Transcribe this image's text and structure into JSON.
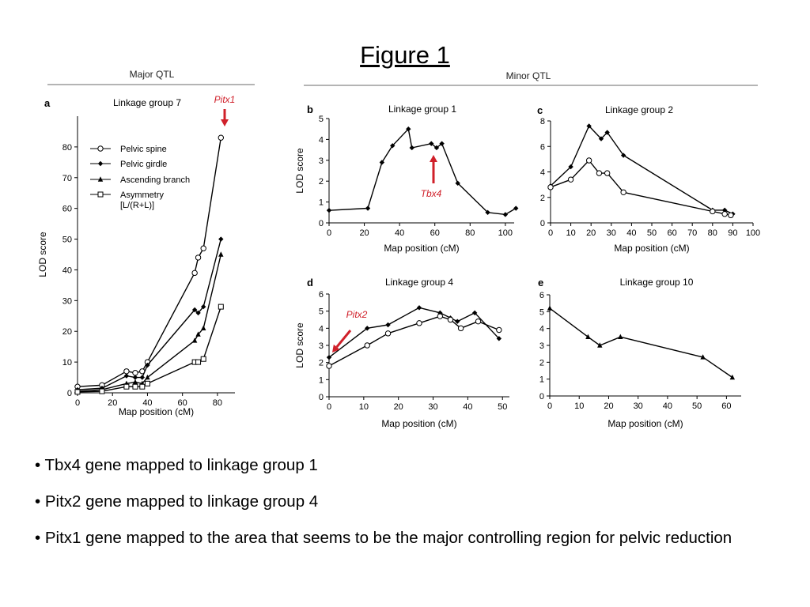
{
  "slide": {
    "title": "Figure 1",
    "bullets": [
      "• Tbx4 gene mapped to linkage group 1",
      "• Pitx2 gene mapped to linkage group 4",
      "• Pitx1 gene mapped to the area that seems to be the major controlling region for pelvic reduction"
    ]
  },
  "figure": {
    "major_heading": "Major QTL",
    "minor_heading": "Minor QTL",
    "accent_color": "#d0202a"
  },
  "chart_data": [
    {
      "id": "a",
      "panel": "a",
      "type": "line",
      "title": "Linkage group 7",
      "xlabel": "Map position (cM)",
      "ylabel": "LOD score",
      "xlim": [
        0,
        90
      ],
      "ylim": [
        0,
        90
      ],
      "xticks": [
        0,
        20,
        40,
        60,
        80
      ],
      "yticks": [
        0,
        10,
        20,
        30,
        40,
        50,
        60,
        70,
        80
      ],
      "legend": "top-left",
      "series": [
        {
          "name": "Pelvic spine",
          "marker": "open-circle",
          "x": [
            0,
            14,
            28,
            33,
            37,
            40,
            67,
            69,
            72,
            82
          ],
          "y": [
            2,
            2.5,
            7,
            6.5,
            7,
            10,
            39,
            44,
            47,
            83
          ]
        },
        {
          "name": "Pelvic girdle",
          "marker": "diamond",
          "x": [
            0,
            14,
            28,
            33,
            37,
            40,
            67,
            69,
            72,
            82
          ],
          "y": [
            1,
            1.5,
            5.5,
            5,
            5,
            9,
            27,
            26,
            28,
            50
          ]
        },
        {
          "name": "Ascending branch",
          "marker": "triangle",
          "x": [
            0,
            14,
            28,
            33,
            37,
            40,
            67,
            69,
            72,
            82
          ],
          "y": [
            0.5,
            1,
            3,
            3.5,
            3,
            5,
            17,
            19,
            21,
            45
          ]
        },
        {
          "name": "Asymmetry [L/(R+L)]",
          "marker": "open-square",
          "x": [
            0,
            14,
            28,
            33,
            37,
            40,
            67,
            69,
            72,
            82
          ],
          "y": [
            0.3,
            0.5,
            2,
            2,
            2,
            3,
            10,
            10,
            11,
            28
          ]
        }
      ],
      "annotations": [
        {
          "text": "Pitx1",
          "x": 82
        }
      ]
    },
    {
      "id": "b",
      "panel": "b",
      "type": "line",
      "title": "Linkage group 1",
      "xlabel": "Map position (cM)",
      "ylabel": "LOD score",
      "xlim": [
        0,
        105
      ],
      "ylim": [
        0,
        5
      ],
      "xticks": [
        0,
        20,
        40,
        60,
        80,
        100
      ],
      "yticks": [
        0,
        1,
        2,
        3,
        4,
        5
      ],
      "series": [
        {
          "marker": "diamond",
          "x": [
            0,
            22,
            30,
            36,
            45,
            47,
            58,
            61,
            64,
            73,
            90,
            100,
            106
          ],
          "y": [
            0.6,
            0.7,
            2.9,
            3.7,
            4.5,
            3.6,
            3.8,
            3.6,
            3.8,
            1.9,
            0.5,
            0.4,
            0.7
          ]
        }
      ],
      "annotations": [
        {
          "text": "Tbx4",
          "x": 62
        }
      ]
    },
    {
      "id": "c",
      "panel": "c",
      "type": "line",
      "title": "Linkage group 2",
      "xlabel": "Map position (cM)",
      "ylabel": "",
      "xlim": [
        0,
        100
      ],
      "ylim": [
        0,
        8
      ],
      "xticks": [
        0,
        10,
        20,
        30,
        40,
        50,
        60,
        70,
        80,
        90,
        100
      ],
      "yticks": [
        0,
        2,
        4,
        6,
        8
      ],
      "series": [
        {
          "marker": "diamond",
          "x": [
            0,
            10,
            19,
            25,
            28,
            36,
            80,
            86,
            90
          ],
          "y": [
            2.9,
            4.4,
            7.6,
            6.6,
            7.1,
            5.3,
            1.0,
            1.0,
            0.7
          ]
        },
        {
          "marker": "open-circle",
          "x": [
            0,
            10,
            19,
            24,
            28,
            36,
            80,
            86,
            89
          ],
          "y": [
            2.8,
            3.4,
            4.9,
            3.9,
            3.9,
            2.4,
            0.9,
            0.7,
            0.6
          ]
        }
      ]
    },
    {
      "id": "d",
      "panel": "d",
      "type": "line",
      "title": "Linkage group 4",
      "xlabel": "Map position (cM)",
      "ylabel": "LOD score",
      "xlim": [
        0,
        52
      ],
      "ylim": [
        0,
        6
      ],
      "xticks": [
        0,
        10,
        20,
        30,
        40,
        50
      ],
      "yticks": [
        0,
        1,
        2,
        3,
        4,
        5,
        6
      ],
      "series": [
        {
          "marker": "diamond",
          "x": [
            0,
            11,
            17,
            26,
            32,
            35,
            37,
            42,
            49
          ],
          "y": [
            2.3,
            4.0,
            4.2,
            5.2,
            4.9,
            4.6,
            4.4,
            4.9,
            3.4
          ]
        },
        {
          "marker": "open-circle",
          "x": [
            0,
            11,
            17,
            26,
            32,
            35,
            38,
            43,
            49
          ],
          "y": [
            1.8,
            3.0,
            3.7,
            4.3,
            4.7,
            4.5,
            4.0,
            4.4,
            3.9
          ]
        }
      ],
      "annotations": [
        {
          "text": "Pitx2",
          "x": 0
        }
      ]
    },
    {
      "id": "e",
      "panel": "e",
      "type": "line",
      "title": "Linkage group 10",
      "xlabel": "Map position (cM)",
      "ylabel": "",
      "xlim": [
        0,
        65
      ],
      "ylim": [
        0,
        6
      ],
      "xticks": [
        0,
        10,
        20,
        30,
        40,
        50,
        60
      ],
      "yticks": [
        0,
        1,
        2,
        3,
        4,
        5,
        6
      ],
      "series": [
        {
          "marker": "triangle",
          "x": [
            0,
            13,
            17,
            24,
            52,
            62
          ],
          "y": [
            5.2,
            3.5,
            3.0,
            3.5,
            2.3,
            1.1
          ]
        }
      ]
    }
  ]
}
